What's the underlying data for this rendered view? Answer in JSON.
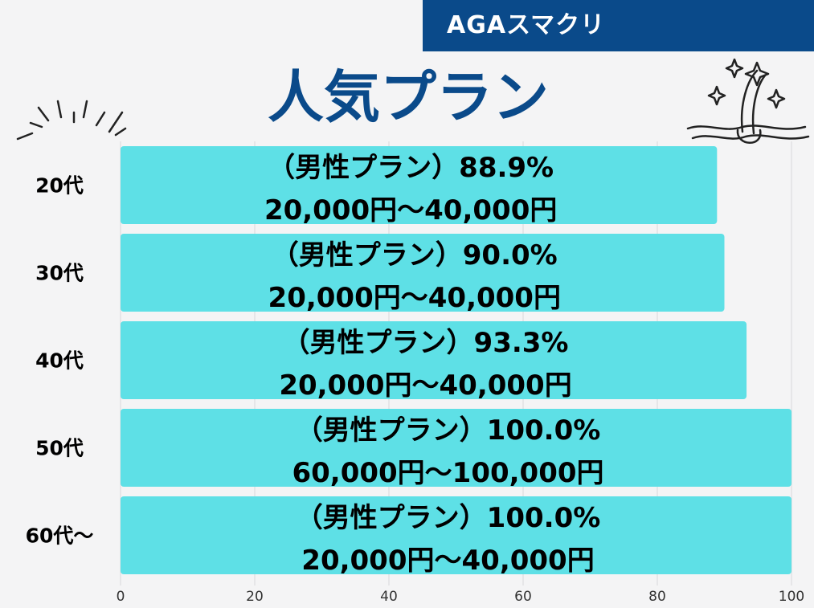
{
  "brand": {
    "name": "AGAスマクリ"
  },
  "chart_data": {
    "type": "bar",
    "orientation": "horizontal",
    "title": "人気プラン",
    "categories": [
      "20代",
      "30代",
      "40代",
      "50代",
      "60代〜"
    ],
    "values": [
      88.9,
      90.0,
      93.3,
      100.0,
      100.0
    ],
    "bar_labels": [
      [
        "（男性プラン）88.9%",
        "20,000円〜40,000円"
      ],
      [
        "（男性プラン）90.0%",
        "20,000円〜40,000円"
      ],
      [
        "（男性プラン）93.3%",
        "20,000円〜40,000円"
      ],
      [
        "（男性プラン）100.0%",
        "60,000円〜100,000円"
      ],
      [
        "（男性プラン）100.0%",
        "20,000円〜40,000円"
      ]
    ],
    "xlim": [
      0,
      100
    ],
    "xticks": [
      0,
      20,
      40,
      60,
      80,
      100
    ],
    "grid": true,
    "bar_color": "#5ee0e6",
    "title_color": "#0a4a8a"
  }
}
